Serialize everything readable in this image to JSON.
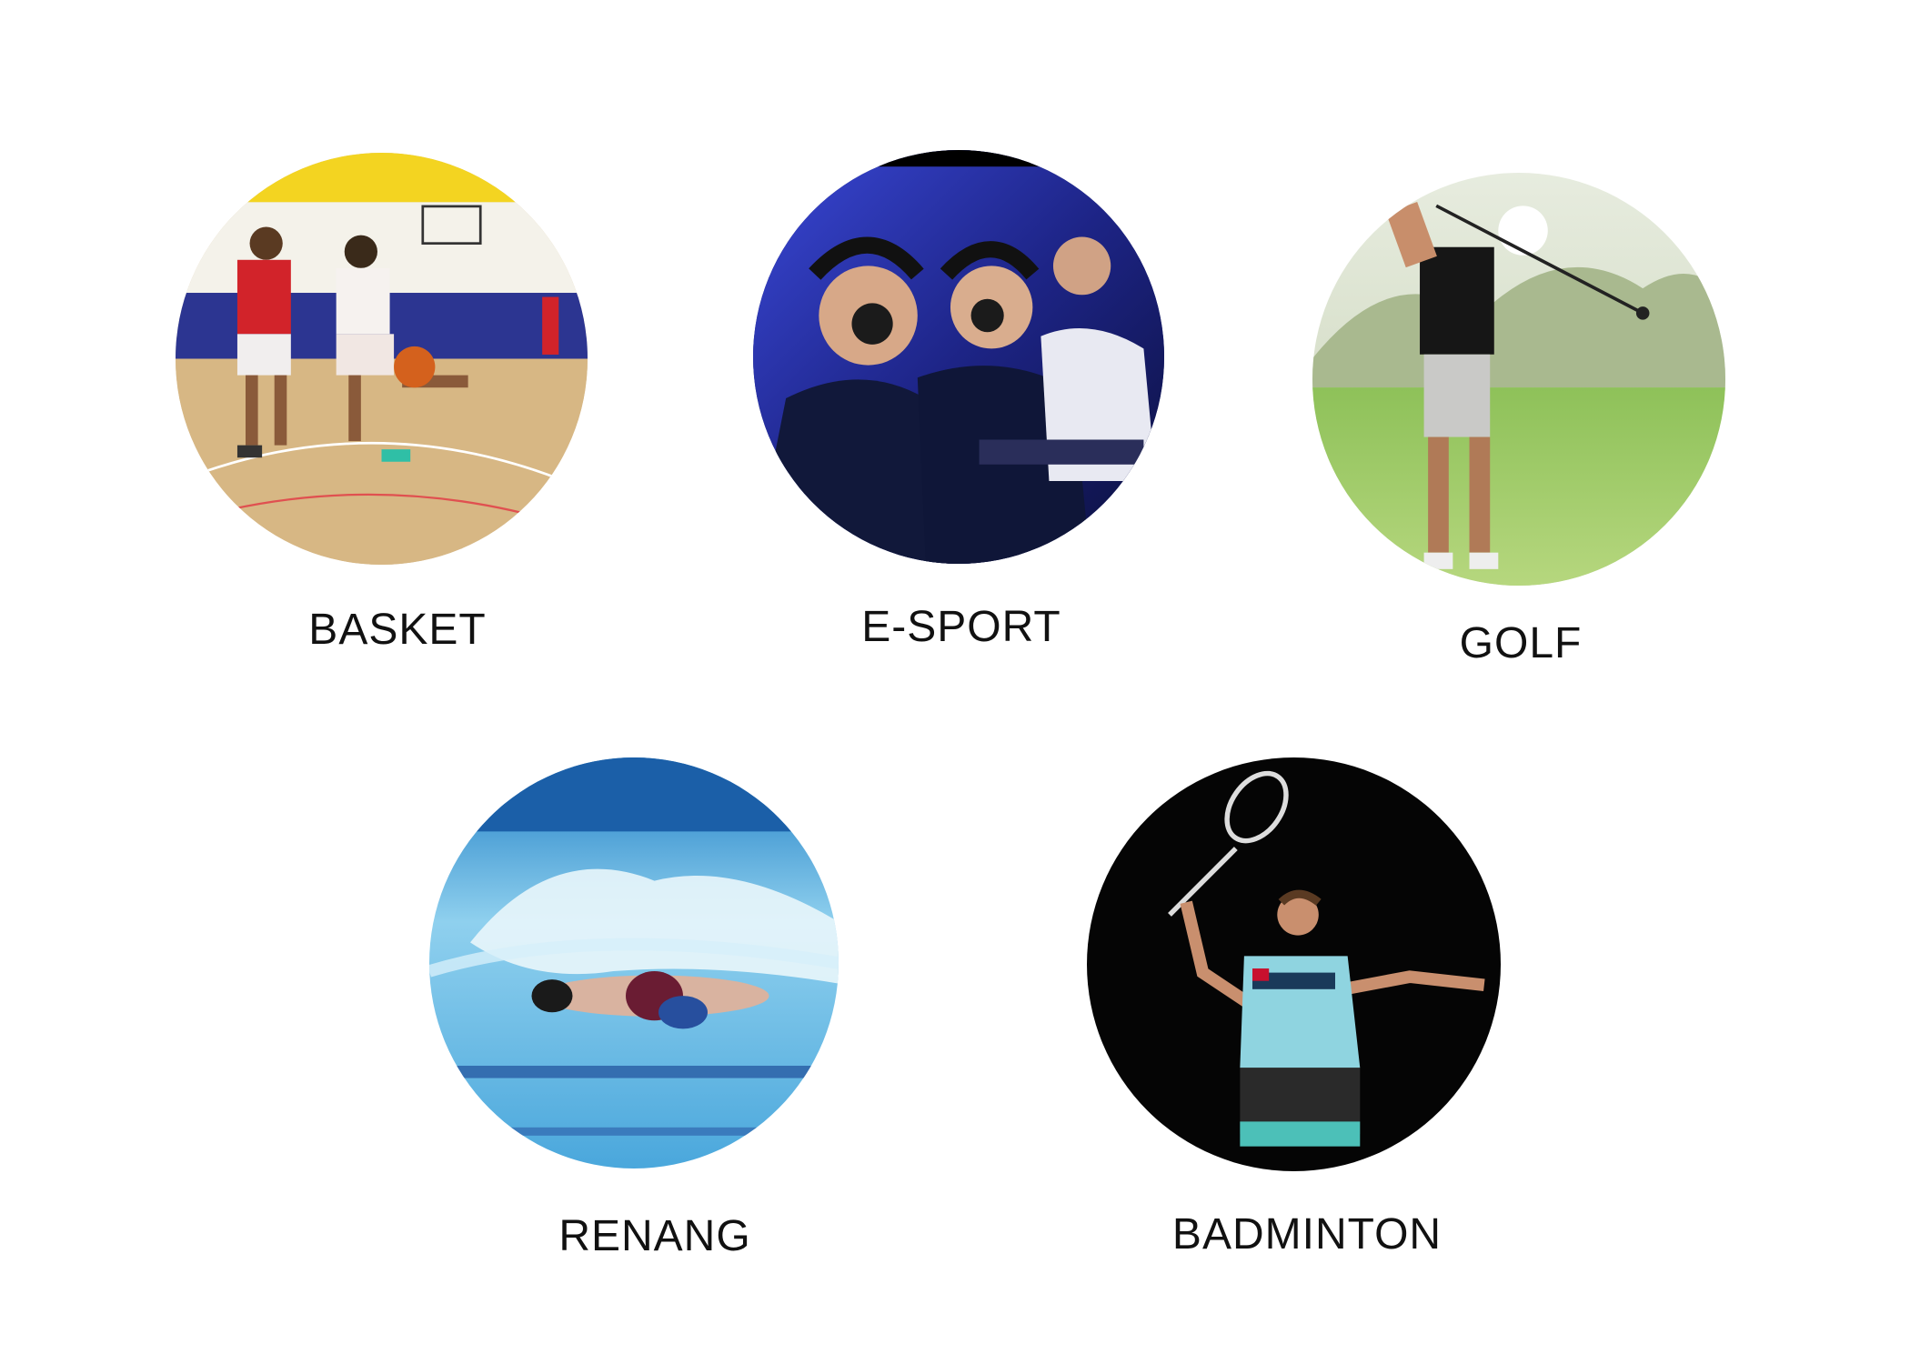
{
  "sports": [
    {
      "id": "basket",
      "label": "BASKET",
      "icon": "basketball-photo"
    },
    {
      "id": "esport",
      "label": "E-SPORT",
      "icon": "esport-photo"
    },
    {
      "id": "golf",
      "label": "GOLF",
      "icon": "golf-photo"
    },
    {
      "id": "renang",
      "label": "RENANG",
      "icon": "swimming-photo"
    },
    {
      "id": "badminton",
      "label": "BADMINTON",
      "icon": "badminton-photo"
    }
  ],
  "colors": {
    "background": "#ffffff",
    "label": "#111111"
  }
}
